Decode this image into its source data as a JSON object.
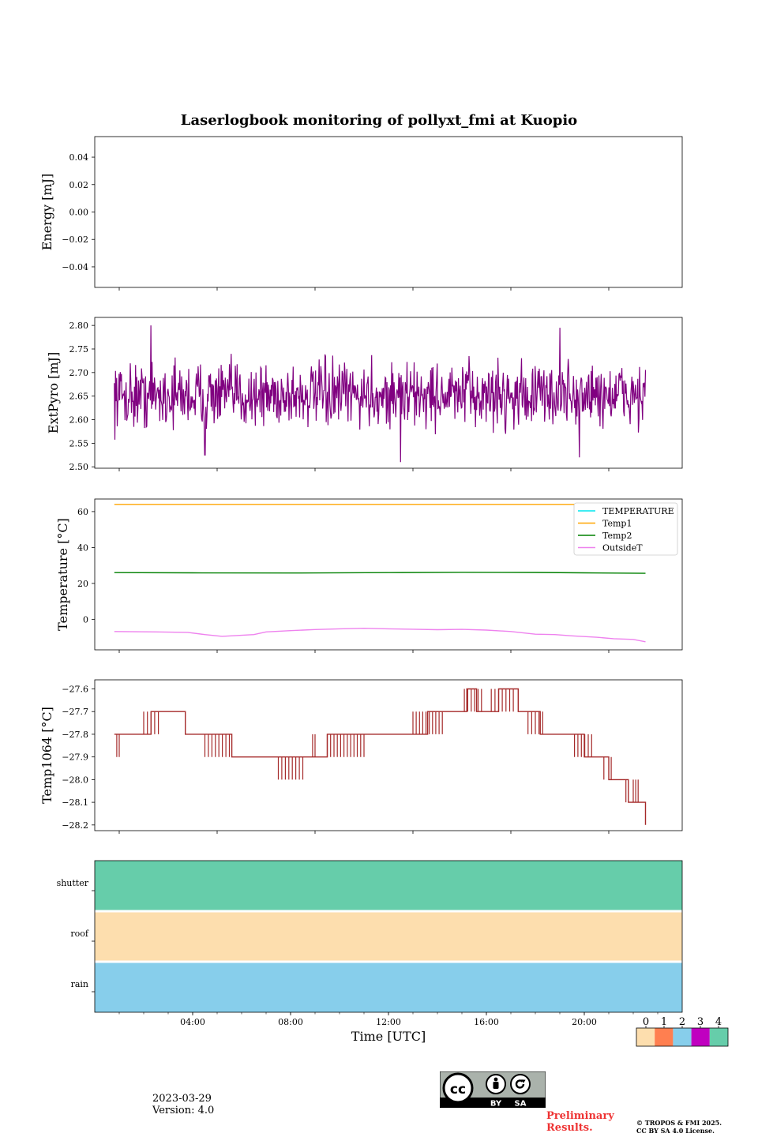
{
  "figure": {
    "title": "Laserlogbook monitoring of pollyxt_fmi at Kuopio",
    "date": "2023-03-29",
    "version": "Version: 4.0",
    "preliminary": [
      "Preliminary",
      "Results."
    ],
    "copyright": [
      "© TROPOS & FMI 2025.",
      "CC BY SA 4.0 License."
    ],
    "license_badge": [
      "BY",
      "SA"
    ]
  },
  "chart_data": [
    {
      "type": "line",
      "ylabel": "Energy [mJ]",
      "ylim": [
        -0.055,
        0.055
      ],
      "yticks": [
        0.04,
        0.02,
        0.0,
        -0.02,
        -0.04
      ],
      "ytick_labels": [
        "0.04",
        "0.02",
        "0.00",
        "−0.02",
        "−0.04"
      ],
      "series": []
    },
    {
      "type": "line",
      "ylabel": "ExtPyro [mJ]",
      "ylim": [
        2.497,
        2.817
      ],
      "yticks": [
        2.8,
        2.75,
        2.7,
        2.65,
        2.6,
        2.55,
        2.5
      ],
      "ytick_labels": [
        "2.80",
        "2.75",
        "2.70",
        "2.65",
        "2.60",
        "2.55",
        "2.50"
      ],
      "series": [
        {
          "name": "ExtPyro",
          "color": "#800080",
          "x": [
            0.8,
            22.5
          ],
          "mean": 2.652,
          "spread": 0.045,
          "extremes": [
            [
              2.3,
              2.8
            ],
            [
              4.5,
              2.525
            ],
            [
              12.5,
              2.51
            ],
            [
              19.0,
              2.795
            ],
            [
              19.8,
              2.52
            ]
          ]
        }
      ]
    },
    {
      "type": "line",
      "ylabel": "Temperature [°C]",
      "ylim": [
        -17,
        67
      ],
      "yticks": [
        60,
        40,
        20,
        0
      ],
      "ytick_labels": [
        "60",
        "40",
        "20",
        "0"
      ],
      "legend": "top-right",
      "series": [
        {
          "name": "TEMPERATURE",
          "color": "#00e5ee",
          "x": [],
          "y": []
        },
        {
          "name": "Temp1",
          "color": "#ffa500",
          "x": [
            0.8,
            22.5
          ],
          "y": [
            64,
            64
          ]
        },
        {
          "name": "Temp2",
          "color": "#008000",
          "x": [
            0.8,
            4,
            8,
            12,
            15,
            18,
            20,
            22.5
          ],
          "y": [
            26,
            25.9,
            25.8,
            26,
            26.2,
            26.1,
            25.9,
            25.6
          ]
        },
        {
          "name": "OutsideT",
          "color": "#ee82ee",
          "x": [
            0.8,
            2.5,
            3.8,
            4.5,
            5.2,
            6.5,
            7,
            8,
            9,
            10,
            11,
            12,
            13,
            14,
            15,
            16,
            17,
            18,
            18.8,
            19.5,
            20.5,
            21.2,
            22,
            22.5
          ],
          "y": [
            -6.8,
            -7,
            -7.3,
            -8.5,
            -9.5,
            -8.5,
            -7,
            -6.3,
            -5.7,
            -5.3,
            -5,
            -5.3,
            -5.5,
            -5.8,
            -5.6,
            -6,
            -6.8,
            -8.3,
            -8.5,
            -9.2,
            -10,
            -10.8,
            -11.2,
            -12.5
          ]
        }
      ]
    },
    {
      "type": "line",
      "ylabel": "Temp1064 [°C]",
      "ylim": [
        -28.225,
        -27.56
      ],
      "yticks": [
        -27.6,
        -27.7,
        -27.8,
        -27.9,
        -28.0,
        -28.1,
        -28.2
      ],
      "ytick_labels": [
        "−27.6",
        "−27.7",
        "−27.8",
        "−27.9",
        "−28.0",
        "−28.1",
        "−28.2"
      ],
      "series": [
        {
          "name": "Temp1064",
          "color": "#a52a2a",
          "steps": [
            [
              0.8,
              -27.8
            ],
            [
              2.3,
              -27.7
            ],
            [
              3.7,
              -27.8
            ],
            [
              4.4,
              -27.8
            ],
            [
              5.6,
              -27.9
            ],
            [
              9.5,
              -27.8
            ],
            [
              12.2,
              -27.8
            ],
            [
              13.6,
              -27.7
            ],
            [
              15.2,
              -27.6
            ],
            [
              15.6,
              -27.7
            ],
            [
              16.5,
              -27.6
            ],
            [
              17.3,
              -27.7
            ],
            [
              18.2,
              -27.8
            ],
            [
              20.0,
              -27.9
            ],
            [
              21.0,
              -28.0
            ],
            [
              21.8,
              -28.1
            ],
            [
              22.5,
              -28.2
            ]
          ],
          "flicker": [
            [
              0.9,
              1.0,
              -27.9
            ],
            [
              2.0,
              2.6,
              -27.7
            ],
            [
              4.5,
              5.5,
              -27.9
            ],
            [
              7.5,
              8.5,
              -28.0
            ],
            [
              8.9,
              9.0,
              -27.8
            ],
            [
              9.5,
              11.0,
              -27.9
            ],
            [
              13.0,
              14.2,
              -27.7
            ],
            [
              15.1,
              15.8,
              -27.6
            ],
            [
              16.2,
              17.1,
              -27.6
            ],
            [
              17.7,
              18.3,
              -27.8
            ],
            [
              19.6,
              20.3,
              -27.9
            ],
            [
              20.8,
              21.1,
              -28.0
            ],
            [
              21.7,
              22.0,
              -28.1
            ],
            [
              22.1,
              22.2,
              -28.0
            ]
          ]
        }
      ]
    },
    {
      "type": "heatmap",
      "rows": [
        "shutter",
        "roof",
        "rain"
      ],
      "row_values": [
        4,
        0,
        2
      ],
      "xlabel": "Time [UTC]",
      "xlim": [
        0,
        24
      ],
      "xticks": [
        4,
        8,
        12,
        16,
        20
      ],
      "xtick_labels": [
        "04:00",
        "08:00",
        "12:00",
        "16:00",
        "20:00"
      ],
      "colorbar": {
        "labels": [
          "0",
          "1",
          "2",
          "3",
          "4"
        ],
        "colors": [
          "#fddeae",
          "#ff7f50",
          "#87ceeb",
          "#c000c0",
          "#66cdaa"
        ]
      }
    }
  ]
}
